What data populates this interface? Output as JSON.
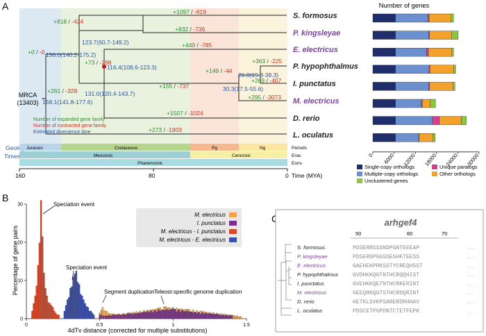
{
  "panel_a": {
    "label": "A",
    "root_label": "MRCA",
    "root_count": "(13403)",
    "species": [
      {
        "name": "S. formosus",
        "color": "#222222"
      },
      {
        "name": "P. kingsleyae",
        "color": "#7b3fa0"
      },
      {
        "name": "E. electricus",
        "color": "#7b3fa0"
      },
      {
        "name": "P. hypophthalmus",
        "color": "#222222"
      },
      {
        "name": "I. punctatus",
        "color": "#222222"
      },
      {
        "name": "M. electricus",
        "color": "#7b3fa0"
      },
      {
        "name": "D. rerio",
        "color": "#222222"
      },
      {
        "name": "L. oculatus",
        "color": "#222222"
      }
    ],
    "node_ages": {
      "n_osteo": "158.1(141.8-177.6)",
      "n_osteo2": "156.0(140.2-175.2)",
      "n_osteo_sub": "123.7(60.7-149.2)",
      "n_otophysi": "131.0(120.4-143.7)",
      "n_gymno_silu": "116.4(108.6-123.3)",
      "n_silu": "30.3(17.5-55.6)",
      "n_silu2": "26.0(15.3-38.3)"
    },
    "gains_losses": {
      "root": {
        "gain": "+0",
        "loss": "-0"
      },
      "osteo": {
        "gain": "+818",
        "loss": "-424"
      },
      "sform": {
        "gain": "+1097",
        "loss": "-619"
      },
      "pking": {
        "gain": "+832",
        "loss": "-736"
      },
      "eelec": {
        "gain": "+449",
        "loss": "-785"
      },
      "gs": {
        "gain": "+73",
        "loss": "-298"
      },
      "oto": {
        "gain": "+261",
        "loss": "-328"
      },
      "silu": {
        "gain": "+155",
        "loss": "-737"
      },
      "silu2": {
        "gain": "+149",
        "loss": "-44"
      },
      "phyp": {
        "gain": "+363",
        "loss": "-225"
      },
      "ipun": {
        "gain": "+269",
        "loss": "-407"
      },
      "melec": {
        "gain": "+295",
        "loss": "-3073"
      },
      "drerio": {
        "gain": "+1507",
        "loss": "-1024"
      },
      "locu": {
        "gain": "+273",
        "loss": "-1803"
      }
    },
    "legend_lines": [
      {
        "text": "Number of expanded gene family",
        "color": "#2e8b2e"
      },
      {
        "text": "Number of contracted gene family",
        "color": "#d0301f"
      },
      {
        "text": "Estimated divergence time",
        "color": "#2a55a0"
      }
    ],
    "geologic_label": "Geologic",
    "timescale_label": "Timescale",
    "periods": [
      "Jurassic",
      "Cretaceous",
      "Pg",
      "Ng"
    ],
    "eras": [
      "Mesozoic",
      "Cenozoic"
    ],
    "eons": [
      "Phanerozoic"
    ],
    "row_labels": [
      "Periods",
      "Eras",
      "Eons"
    ],
    "time_ticks": [
      "160",
      "80",
      "0"
    ],
    "time_label": "Time (MYA)"
  },
  "panel_a_bars": {
    "title": "Number of genes",
    "chart_data": {
      "type": "bar",
      "orientation": "horizontal",
      "stacked": true,
      "categories": [
        "S. formosus",
        "P. kingsleyae",
        "E. electricus",
        "P. hypophthalmus",
        "I. punctatus",
        "M. electricus",
        "D. rerio",
        "L. oculatus"
      ],
      "series": [
        {
          "name": "Single-copy orthologs",
          "color": "#1f2d6b",
          "values": [
            6400,
            6400,
            6400,
            6400,
            6400,
            6400,
            6400,
            6400
          ]
        },
        {
          "name": "Multiple-copy orthologs",
          "color": "#6c8fd0",
          "values": [
            9200,
            9400,
            8800,
            9500,
            9400,
            7300,
            10400,
            6600
          ]
        },
        {
          "name": "Unique paralogs",
          "color": "#d93d8e",
          "values": [
            300,
            200,
            500,
            200,
            200,
            300,
            2000,
            100
          ]
        },
        {
          "name": "Other orthologs",
          "color": "#f2a22c",
          "values": [
            6200,
            6300,
            6600,
            6800,
            6700,
            2200,
            6200,
            3900
          ]
        },
        {
          "name": "Unclustered genes",
          "color": "#8cc63f",
          "values": [
            700,
            1800,
            500,
            500,
            500,
            1500,
            1400,
            600
          ]
        }
      ],
      "xlim": [
        0,
        30000
      ],
      "ticks": [
        "0",
        "6000",
        "12000",
        "18000",
        "24000",
        "30000"
      ]
    },
    "legend": [
      "Single-copy orthologs",
      "Unique paralogs",
      "Multiple-copy orthologs",
      "Other orthologs",
      "Unclustered genes"
    ]
  },
  "panel_b": {
    "label": "B",
    "ylabel": "Percentage of gene pairs",
    "xlabel": "4dTv distance (corrected for multiple substitutions)",
    "annotations": [
      "Speciation event",
      "Speciation event",
      "Segment duplication",
      "Teleost-specific genome duplication"
    ],
    "legend": [
      {
        "name": "M. electricus",
        "color": "#f2a44a"
      },
      {
        "name": "I. punctatus",
        "color": "#7a2f8c"
      },
      {
        "name": "M. electricus - I. punctatus",
        "color": "#d44a2a"
      },
      {
        "name": "M. electricus - E. electricus",
        "color": "#3b4fa8"
      }
    ],
    "chart_data": {
      "type": "bar",
      "xlim": [
        0,
        1.5
      ],
      "ylim": [
        0,
        30
      ],
      "xticks": [
        "0",
        "0.5",
        "1",
        "1.5"
      ],
      "yticks": [
        "0",
        "10",
        "20",
        "30"
      ],
      "series": [
        {
          "name": "M. electricus - I. punctatus",
          "x": [
            0.04,
            0.06,
            0.08,
            0.1,
            0.12,
            0.14,
            0.16,
            0.18,
            0.2,
            0.22
          ],
          "y": [
            2,
            6,
            14,
            31,
            12,
            6,
            4,
            3,
            1.5,
            1
          ]
        },
        {
          "name": "M. electricus - E. electricus",
          "x": [
            0.26,
            0.28,
            0.3,
            0.32,
            0.34,
            0.36,
            0.38,
            0.4,
            0.42,
            0.44,
            0.46
          ],
          "y": [
            2,
            5,
            8,
            11,
            12.5,
            9,
            6,
            4,
            3,
            2,
            1
          ]
        },
        {
          "name": "M. electricus",
          "x": [
            0.5,
            0.52,
            0.56,
            0.62,
            0.7,
            0.8,
            0.9,
            0.95,
            1.0,
            1.1,
            1.2,
            1.3,
            1.4,
            1.46
          ],
          "y": [
            1.5,
            3,
            1.5,
            1.2,
            1.6,
            2.2,
            2.8,
            3.2,
            3.0,
            2.5,
            2.0,
            1.5,
            1.0,
            0.6
          ]
        },
        {
          "name": "I. punctatus",
          "x": [
            0.5,
            0.54,
            0.6,
            0.7,
            0.8,
            0.9,
            1.0,
            1.1,
            1.2,
            1.3,
            1.4
          ],
          "y": [
            1.0,
            0.8,
            1.0,
            1.3,
            1.8,
            2.4,
            2.6,
            2.0,
            1.6,
            1.2,
            0.8
          ]
        }
      ]
    }
  },
  "panel_c": {
    "label": "C",
    "title": "arhgef4",
    "ticks": [
      "50",
      "60",
      "70"
    ],
    "rows": [
      {
        "name": "S. formosus",
        "color": "#222222",
        "seq": "PDSERRSSSNDPGNTEEEAP"
      },
      {
        "name": "P. kingsleyae",
        "color": "#7b3fa0",
        "seq": "PDSERGPGGSSEGHKTEESS"
      },
      {
        "name": "E. electricus",
        "color": "#7b3fa0",
        "seq": "GAEHEKPRKSSTYCREQHSST"
      },
      {
        "name": "P. hypophthalmus",
        "color": "#222222",
        "seq": "GVDHKKQGTNTHCRQQHIST"
      },
      {
        "name": "I. punctatus",
        "color": "#222222",
        "seq": "GVEHKKQETNTHCRKERINT"
      },
      {
        "name": "M. electricus",
        "color": "#7b3fa0",
        "seq": "GEEQRKQGTSTHCRDQRINT"
      },
      {
        "name": "D. rerio",
        "color": "#222222",
        "seq": "HETKLSVKPSARERDRHHAV"
      },
      {
        "name": "L. oculatus",
        "color": "#222222",
        "seq": "PDSCETPGPDNTCTETFEPK"
      }
    ],
    "ellipsis": ". . ."
  }
}
